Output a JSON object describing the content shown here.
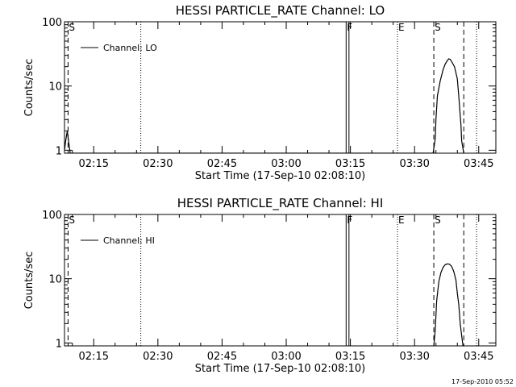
{
  "footer": {
    "timestamp": "17-Sep-2010 05:52"
  },
  "chart_data": [
    {
      "type": "line",
      "title": "HESSI PARTICLE_RATE Channel: LO",
      "xlabel": "Start Time (17-Sep-10 02:08:10)",
      "ylabel": "Counts/sec",
      "yscale": "log",
      "ylim": [
        0.9,
        100
      ],
      "xlim": [
        "02:08:10",
        "03:49:00"
      ],
      "x_ticks": [
        "02:15",
        "02:30",
        "02:45",
        "03:00",
        "03:15",
        "03:30",
        "03:45"
      ],
      "y_ticks": [
        "1",
        "10",
        "100"
      ],
      "legend": {
        "entry": "Channel: LO",
        "placement": "top-left"
      },
      "series": [
        {
          "name": "Channel: LO",
          "x": [
            "02:08:10",
            "02:08:30",
            "02:08:50",
            "02:09:10",
            "02:09:30",
            "03:34:20",
            "03:34:50",
            "03:35:00",
            "03:35:20",
            "03:36:00",
            "03:36:40",
            "03:37:10",
            "03:37:40",
            "03:38:00",
            "03:38:20",
            "03:38:40",
            "03:39:20",
            "03:40:00",
            "03:40:20",
            "03:40:50",
            "03:41:00",
            "03:41:30"
          ],
          "y": [
            1.0,
            1.5,
            2.0,
            1.3,
            0.9,
            0.9,
            1.5,
            3.0,
            7.0,
            12.0,
            18.0,
            22.0,
            25.0,
            26.5,
            26.0,
            24.0,
            20.0,
            13.0,
            7.0,
            2.5,
            1.4,
            0.9
          ]
        }
      ],
      "markers": [
        {
          "time": "02:09:00",
          "style": "dashed",
          "label": "S"
        },
        {
          "time": "02:26:00",
          "style": "dotted",
          "label": ""
        },
        {
          "time": "03:14:00",
          "style": "solid",
          "label": "F"
        },
        {
          "time": "03:14:40",
          "style": "solid",
          "label": ""
        },
        {
          "time": "03:26:00",
          "style": "dotted",
          "label": "E"
        },
        {
          "time": "03:34:30",
          "style": "dashed",
          "label": "S"
        },
        {
          "time": "03:41:30",
          "style": "dashed",
          "label": ""
        },
        {
          "time": "03:44:30",
          "style": "dotted",
          "label": ""
        }
      ]
    },
    {
      "type": "line",
      "title": "HESSI PARTICLE_RATE Channel: HI",
      "xlabel": "Start Time (17-Sep-10 02:08:10)",
      "ylabel": "Counts/sec",
      "yscale": "log",
      "ylim": [
        0.9,
        100
      ],
      "xlim": [
        "02:08:10",
        "03:49:00"
      ],
      "x_ticks": [
        "02:15",
        "02:30",
        "02:45",
        "03:00",
        "03:15",
        "03:30",
        "03:45"
      ],
      "y_ticks": [
        "1",
        "10",
        "100"
      ],
      "legend": {
        "entry": "Channel: HI",
        "placement": "top-left"
      },
      "series": [
        {
          "name": "Channel: HI",
          "x": [
            "03:34:30",
            "03:34:50",
            "03:35:10",
            "03:35:40",
            "03:36:10",
            "03:36:40",
            "03:37:10",
            "03:37:40",
            "03:38:10",
            "03:38:40",
            "03:39:10",
            "03:39:40",
            "03:40:00",
            "03:40:20",
            "03:40:40",
            "03:41:00",
            "03:41:20"
          ],
          "y": [
            0.9,
            1.6,
            4.5,
            9.0,
            12.5,
            15.0,
            16.5,
            17.0,
            16.8,
            15.5,
            13.0,
            9.5,
            6.0,
            4.0,
            2.0,
            1.3,
            0.9
          ]
        }
      ],
      "markers": [
        {
          "time": "02:09:00",
          "style": "dashed",
          "label": "S"
        },
        {
          "time": "02:26:00",
          "style": "dotted",
          "label": ""
        },
        {
          "time": "03:14:00",
          "style": "solid",
          "label": "F"
        },
        {
          "time": "03:14:40",
          "style": "solid",
          "label": ""
        },
        {
          "time": "03:26:00",
          "style": "dotted",
          "label": "E"
        },
        {
          "time": "03:34:30",
          "style": "dashed",
          "label": "S"
        },
        {
          "time": "03:41:30",
          "style": "dashed",
          "label": ""
        },
        {
          "time": "03:44:30",
          "style": "dotted",
          "label": ""
        }
      ]
    }
  ]
}
